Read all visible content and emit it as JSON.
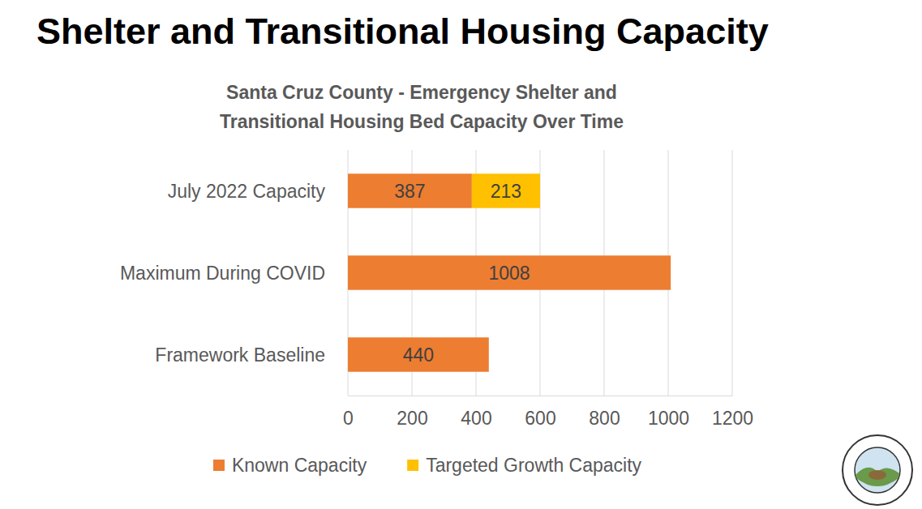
{
  "chart_data": {
    "type": "bar",
    "orientation": "horizontal",
    "stacked": true,
    "title": "Shelter and Transitional Housing Capacity",
    "subtitle": "Santa Cruz County - Emergency Shelter and Transitional Housing Bed Capacity Over Time",
    "categories": [
      "July 2022 Capacity",
      "Maximum During COVID",
      "Framework Baseline"
    ],
    "series": [
      {
        "name": "Known Capacity",
        "color": "#ed7d31",
        "values": [
          387,
          1008,
          440
        ]
      },
      {
        "name": "Targeted Growth Capacity",
        "color": "#ffc000",
        "values": [
          213,
          null,
          null
        ]
      }
    ],
    "xlim": [
      0,
      1200
    ],
    "xticks": [
      0,
      200,
      400,
      600,
      800,
      1000,
      1200
    ],
    "grid": true,
    "data_labels": true,
    "legend": "bottom"
  }
}
